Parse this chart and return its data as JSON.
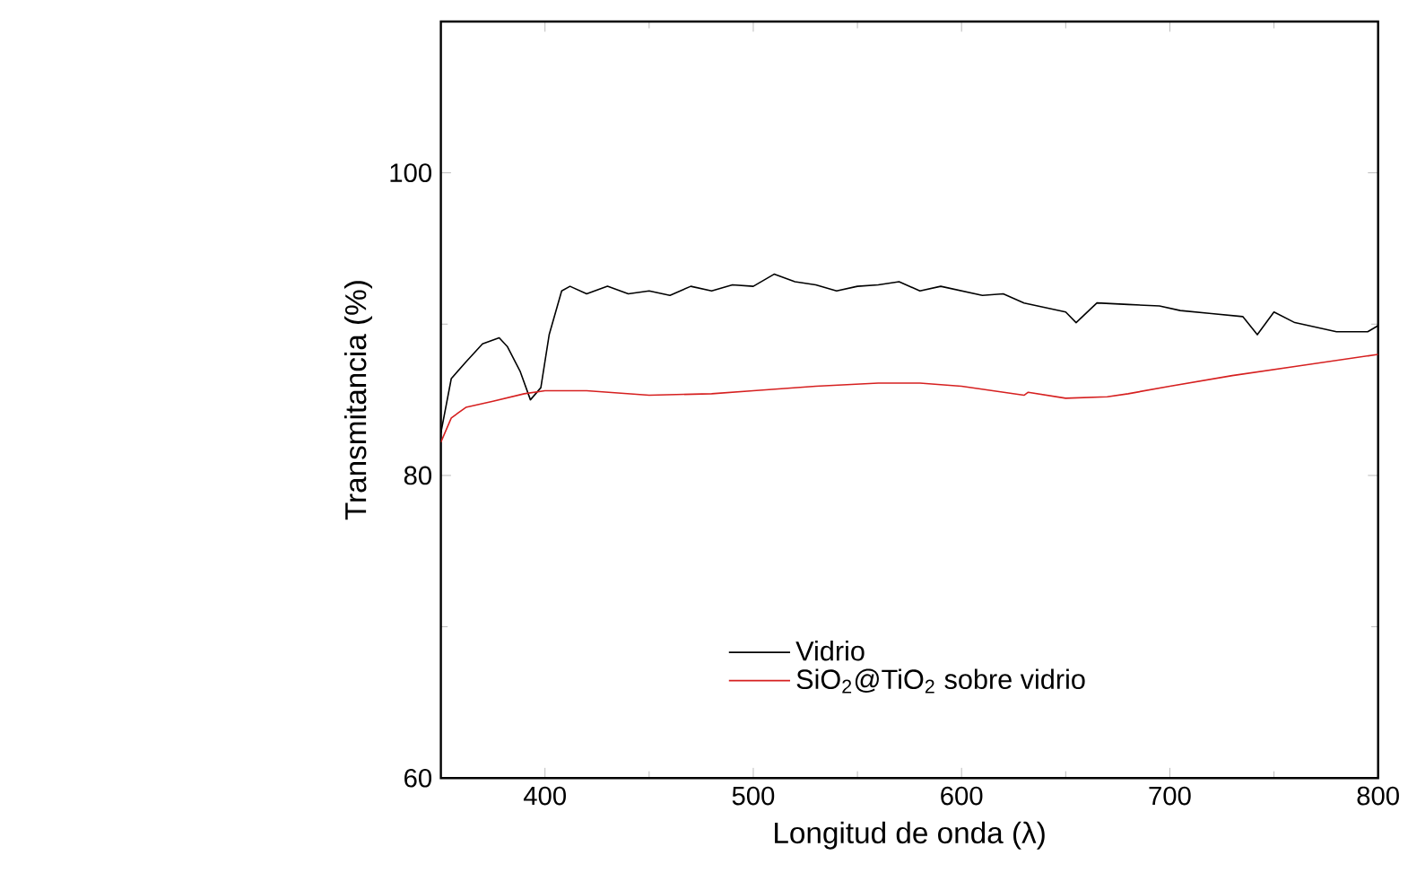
{
  "chart_data": {
    "type": "line",
    "xlabel": "Longitud de onda (λ)",
    "ylabel": "Transmitancia (%)",
    "xlim": [
      350,
      800
    ],
    "ylim": [
      60,
      110
    ],
    "xticks": [
      400,
      500,
      600,
      700,
      800
    ],
    "yticks": [
      60,
      80,
      100
    ],
    "grid": false,
    "legend": "bottom",
    "marker": "none",
    "line_style": "solid",
    "series": [
      {
        "name": "Vidrio",
        "color": "#000000",
        "x": [
          350,
          355,
          362,
          370,
          378,
          382,
          388,
          393,
          398,
          402,
          408,
          412,
          420,
          430,
          440,
          450,
          460,
          470,
          480,
          490,
          500,
          510,
          520,
          530,
          540,
          550,
          560,
          570,
          580,
          590,
          600,
          610,
          620,
          630,
          640,
          650,
          655,
          665,
          680,
          695,
          705,
          720,
          735,
          742,
          750,
          760,
          780,
          795,
          800
        ],
        "values": [
          82.8,
          86.4,
          87.5,
          88.7,
          89.1,
          88.5,
          86.9,
          85.0,
          85.8,
          89.3,
          92.2,
          92.5,
          92.0,
          92.5,
          92.0,
          92.2,
          91.9,
          92.5,
          92.2,
          92.6,
          92.5,
          93.3,
          92.8,
          92.6,
          92.2,
          92.5,
          92.6,
          92.8,
          92.2,
          92.5,
          92.2,
          91.9,
          92.0,
          91.4,
          91.1,
          90.8,
          90.1,
          91.4,
          91.3,
          91.2,
          90.9,
          90.7,
          90.5,
          89.3,
          90.8,
          90.1,
          89.5,
          89.5,
          89.9
        ]
      },
      {
        "name": "SiO$_{2}$@TiO$_{2}$ sobre vidrio",
        "color": "#d62020",
        "x": [
          350,
          355,
          362,
          375,
          390,
          400,
          420,
          450,
          480,
          500,
          530,
          560,
          580,
          600,
          630,
          632,
          650,
          670,
          680,
          700,
          730,
          760,
          800
        ],
        "values": [
          82.2,
          83.8,
          84.5,
          84.9,
          85.4,
          85.6,
          85.6,
          85.3,
          85.4,
          85.6,
          85.9,
          86.1,
          86.1,
          85.9,
          85.3,
          85.5,
          85.1,
          85.2,
          85.4,
          85.9,
          86.6,
          87.2,
          88.0
        ]
      }
    ]
  }
}
